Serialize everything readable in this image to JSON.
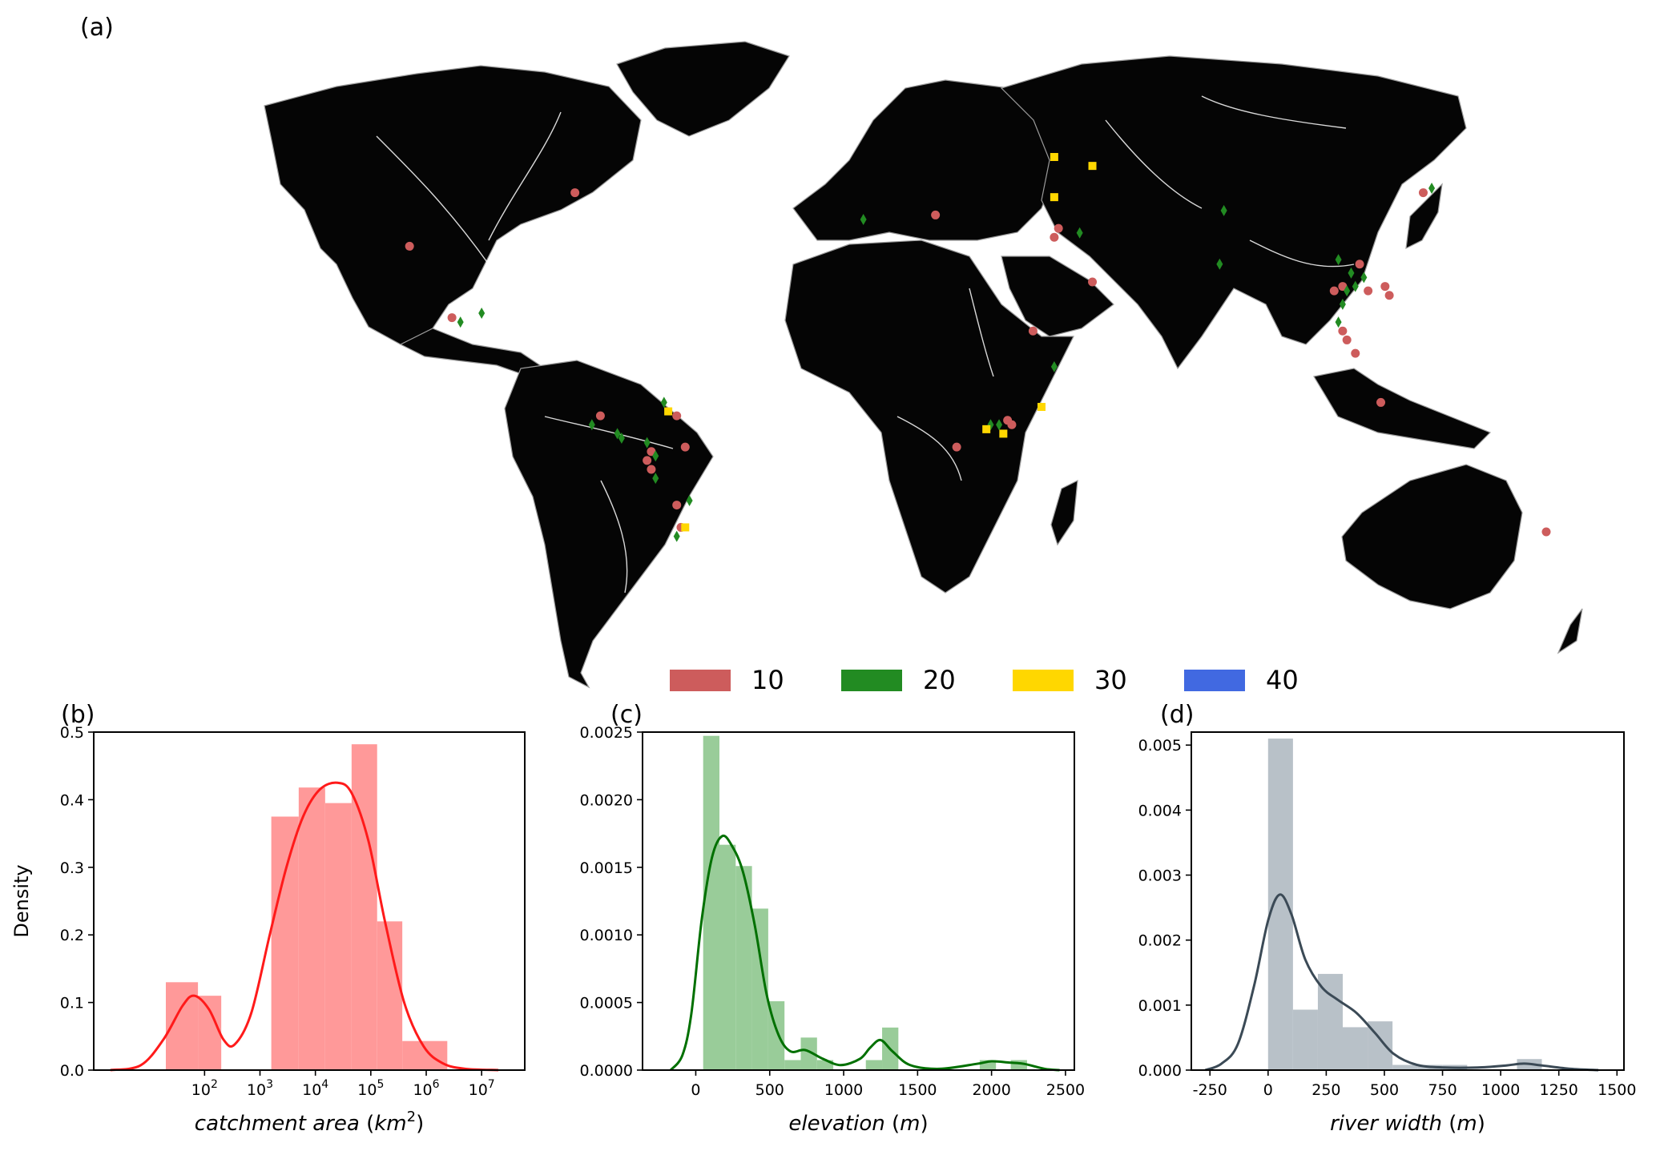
{
  "panels": {
    "a": {
      "label": "(a)"
    },
    "b": {
      "label": "(b)"
    },
    "c": {
      "label": "(c)"
    },
    "d": {
      "label": "(d)"
    }
  },
  "map": {
    "legend": [
      {
        "label": "10",
        "color": "#cd5c5c"
      },
      {
        "label": "20",
        "color": "#228b22"
      },
      {
        "label": "30",
        "color": "#ffd700"
      },
      {
        "label": "40",
        "color": "#4169e1"
      }
    ],
    "sites": [
      {
        "lon": -115,
        "lat": 36,
        "cat": "10"
      },
      {
        "lon": -76,
        "lat": 48,
        "cat": "10"
      },
      {
        "lon": -105,
        "lat": 20,
        "cat": "10"
      },
      {
        "lon": -103,
        "lat": 19,
        "cat": "20"
      },
      {
        "lon": -98,
        "lat": 21,
        "cat": "20"
      },
      {
        "lon": -72,
        "lat": -4,
        "cat": "20"
      },
      {
        "lon": -70,
        "lat": -2,
        "cat": "10"
      },
      {
        "lon": -66,
        "lat": -6,
        "cat": "20"
      },
      {
        "lon": -65,
        "lat": -7,
        "cat": "20"
      },
      {
        "lon": -52,
        "lat": -2,
        "cat": "10"
      },
      {
        "lon": -54,
        "lat": -1,
        "cat": "30"
      },
      {
        "lon": -55,
        "lat": 1,
        "cat": "20"
      },
      {
        "lon": -58,
        "lat": -10,
        "cat": "10"
      },
      {
        "lon": -59,
        "lat": -8,
        "cat": "20"
      },
      {
        "lon": -57,
        "lat": -11,
        "cat": "20"
      },
      {
        "lon": -59,
        "lat": -12,
        "cat": "10"
      },
      {
        "lon": -58,
        "lat": -14,
        "cat": "10"
      },
      {
        "lon": -57,
        "lat": -16,
        "cat": "20"
      },
      {
        "lon": -50,
        "lat": -9,
        "cat": "10"
      },
      {
        "lon": -52,
        "lat": -22,
        "cat": "10"
      },
      {
        "lon": -49,
        "lat": -21,
        "cat": "20"
      },
      {
        "lon": -51,
        "lat": -27,
        "cat": "10"
      },
      {
        "lon": -50,
        "lat": -27,
        "cat": "30"
      },
      {
        "lon": -52,
        "lat": -29,
        "cat": "20"
      },
      {
        "lon": -8,
        "lat": 42,
        "cat": "20"
      },
      {
        "lon": 9,
        "lat": 43,
        "cat": "10"
      },
      {
        "lon": 37,
        "lat": 56,
        "cat": "30"
      },
      {
        "lon": 46,
        "lat": 54,
        "cat": "30"
      },
      {
        "lon": 37,
        "lat": 47,
        "cat": "30"
      },
      {
        "lon": 38,
        "lat": 40,
        "cat": "10"
      },
      {
        "lon": 37,
        "lat": 38,
        "cat": "10"
      },
      {
        "lon": 43,
        "lat": 39,
        "cat": "20"
      },
      {
        "lon": 46,
        "lat": 28,
        "cat": "10"
      },
      {
        "lon": 32,
        "lat": 17,
        "cat": "10"
      },
      {
        "lon": 37,
        "lat": 9,
        "cat": "20"
      },
      {
        "lon": 34,
        "lat": 0,
        "cat": "30"
      },
      {
        "lon": 22,
        "lat": -4,
        "cat": "20"
      },
      {
        "lon": 24,
        "lat": -4,
        "cat": "20"
      },
      {
        "lon": 21,
        "lat": -5,
        "cat": "30"
      },
      {
        "lon": 25,
        "lat": -6,
        "cat": "30"
      },
      {
        "lon": 26,
        "lat": -3,
        "cat": "10"
      },
      {
        "lon": 27,
        "lat": -4,
        "cat": "10"
      },
      {
        "lon": 14,
        "lat": -9,
        "cat": "10"
      },
      {
        "lon": 77,
        "lat": 44,
        "cat": "20"
      },
      {
        "lon": 76,
        "lat": 32,
        "cat": "20"
      },
      {
        "lon": 104,
        "lat": 33,
        "cat": "20"
      },
      {
        "lon": 109,
        "lat": 32,
        "cat": "10"
      },
      {
        "lon": 107,
        "lat": 30,
        "cat": "20"
      },
      {
        "lon": 110,
        "lat": 29,
        "cat": "20"
      },
      {
        "lon": 105,
        "lat": 27,
        "cat": "10"
      },
      {
        "lon": 103,
        "lat": 26,
        "cat": "10"
      },
      {
        "lon": 106,
        "lat": 26,
        "cat": "20"
      },
      {
        "lon": 108,
        "lat": 27,
        "cat": "20"
      },
      {
        "lon": 111,
        "lat": 26,
        "cat": "10"
      },
      {
        "lon": 105,
        "lat": 23,
        "cat": "20"
      },
      {
        "lon": 115,
        "lat": 27,
        "cat": "10"
      },
      {
        "lon": 116,
        "lat": 25,
        "cat": "10"
      },
      {
        "lon": 104,
        "lat": 19,
        "cat": "20"
      },
      {
        "lon": 105,
        "lat": 17,
        "cat": "10"
      },
      {
        "lon": 106,
        "lat": 15,
        "cat": "10"
      },
      {
        "lon": 108,
        "lat": 12,
        "cat": "10"
      },
      {
        "lon": 114,
        "lat": 1,
        "cat": "10"
      },
      {
        "lon": 124,
        "lat": 48,
        "cat": "10"
      },
      {
        "lon": 126,
        "lat": 49,
        "cat": "20"
      },
      {
        "lon": 153,
        "lat": -28,
        "cat": "10"
      }
    ]
  },
  "chart_data": [
    {
      "panel": "b",
      "type": "bar",
      "subtype": "histogram_with_kde",
      "xscale": "log",
      "xlabel": "catchment area (km²)",
      "xlabel_text": "catchment area",
      "xlabel_unit_base": "km",
      "xlabel_unit_exp": "2",
      "ylabel": "Density",
      "xlim": [
        1,
        60000000
      ],
      "ylim": [
        0,
        0.5
      ],
      "x_ticks": [
        {
          "value": 100,
          "base": "10",
          "exp": "2"
        },
        {
          "value": 1000,
          "base": "10",
          "exp": "3"
        },
        {
          "value": 10000,
          "base": "10",
          "exp": "4"
        },
        {
          "value": 100000,
          "base": "10",
          "exp": "5"
        },
        {
          "value": 1000000,
          "base": "10",
          "exp": "6"
        },
        {
          "value": 10000000,
          "base": "10",
          "exp": "7"
        }
      ],
      "y_ticks": [
        "0.0",
        "0.1",
        "0.2",
        "0.3",
        "0.4",
        "0.5"
      ],
      "color": "#ff9999",
      "kde_color": "#ff1a1a",
      "bins": [
        {
          "x0": 20,
          "x1": 76,
          "density": 0.13
        },
        {
          "x0": 76,
          "x1": 200,
          "density": 0.11
        },
        {
          "x0": 1600,
          "x1": 5000,
          "density": 0.375
        },
        {
          "x0": 5000,
          "x1": 15000,
          "density": 0.418
        },
        {
          "x0": 15000,
          "x1": 45000,
          "density": 0.395
        },
        {
          "x0": 45000,
          "x1": 130000,
          "density": 0.482
        },
        {
          "x0": 130000,
          "x1": 370000,
          "density": 0.22
        },
        {
          "x0": 370000,
          "x1": 2400000,
          "density": 0.043
        }
      ],
      "kde": [
        {
          "x": 2,
          "y": 0.0
        },
        {
          "x": 7,
          "y": 0.007
        },
        {
          "x": 18,
          "y": 0.045
        },
        {
          "x": 40,
          "y": 0.095
        },
        {
          "x": 65,
          "y": 0.11
        },
        {
          "x": 120,
          "y": 0.09
        },
        {
          "x": 220,
          "y": 0.045
        },
        {
          "x": 350,
          "y": 0.038
        },
        {
          "x": 700,
          "y": 0.085
        },
        {
          "x": 1500,
          "y": 0.2
        },
        {
          "x": 3000,
          "y": 0.3
        },
        {
          "x": 6000,
          "y": 0.375
        },
        {
          "x": 12000,
          "y": 0.415
        },
        {
          "x": 25000,
          "y": 0.425
        },
        {
          "x": 45000,
          "y": 0.41
        },
        {
          "x": 90000,
          "y": 0.34
        },
        {
          "x": 180000,
          "y": 0.22
        },
        {
          "x": 400000,
          "y": 0.1
        },
        {
          "x": 900000,
          "y": 0.035
        },
        {
          "x": 2000000,
          "y": 0.01
        },
        {
          "x": 5000000,
          "y": 0.002
        },
        {
          "x": 20000000,
          "y": 0.0
        }
      ]
    },
    {
      "panel": "c",
      "type": "bar",
      "subtype": "histogram_with_kde",
      "xlabel": "elevation (m)",
      "xlabel_text": "elevation",
      "xlabel_unit": "m",
      "ylabel": "",
      "xlim": [
        -360,
        2560
      ],
      "ylim": [
        0,
        0.0027
      ],
      "x_ticks": [
        0,
        500,
        1000,
        1500,
        2000,
        2500
      ],
      "y_ticks": [
        "0.0000",
        "0.0005",
        "0.0010",
        "0.0015",
        "0.0020",
        "0.0025"
      ],
      "color": "#99cc99",
      "kde_color": "#007000",
      "bins": [
        {
          "x0": 50,
          "x1": 160,
          "density": 0.00267
        },
        {
          "x0": 160,
          "x1": 270,
          "density": 0.0018
        },
        {
          "x0": 270,
          "x1": 380,
          "density": 0.00163
        },
        {
          "x0": 380,
          "x1": 490,
          "density": 0.00129
        },
        {
          "x0": 490,
          "x1": 600,
          "density": 0.00055
        },
        {
          "x0": 600,
          "x1": 710,
          "density": 8e-05
        },
        {
          "x0": 710,
          "x1": 820,
          "density": 0.00026
        },
        {
          "x0": 820,
          "x1": 930,
          "density": 8e-05
        },
        {
          "x0": 1150,
          "x1": 1260,
          "density": 8e-05
        },
        {
          "x0": 1260,
          "x1": 1370,
          "density": 0.00034
        },
        {
          "x0": 1920,
          "x1": 2030,
          "density": 8e-05
        },
        {
          "x0": 2130,
          "x1": 2240,
          "density": 8e-05
        }
      ],
      "kde": [
        {
          "x": -170,
          "y": 0.0
        },
        {
          "x": -90,
          "y": 0.00012
        },
        {
          "x": -30,
          "y": 0.00045
        },
        {
          "x": 40,
          "y": 0.0012
        },
        {
          "x": 110,
          "y": 0.0017
        },
        {
          "x": 180,
          "y": 0.00187
        },
        {
          "x": 250,
          "y": 0.00178
        },
        {
          "x": 320,
          "y": 0.00158
        },
        {
          "x": 400,
          "y": 0.00115
        },
        {
          "x": 480,
          "y": 0.0006
        },
        {
          "x": 560,
          "y": 0.00028
        },
        {
          "x": 640,
          "y": 0.00015
        },
        {
          "x": 740,
          "y": 0.00016
        },
        {
          "x": 860,
          "y": 9e-05
        },
        {
          "x": 980,
          "y": 4e-05
        },
        {
          "x": 1110,
          "y": 9e-05
        },
        {
          "x": 1180,
          "y": 0.00018
        },
        {
          "x": 1250,
          "y": 0.00024
        },
        {
          "x": 1330,
          "y": 0.00015
        },
        {
          "x": 1450,
          "y": 4e-05
        },
        {
          "x": 1650,
          "y": 1e-05
        },
        {
          "x": 1900,
          "y": 5e-05
        },
        {
          "x": 2000,
          "y": 7e-05
        },
        {
          "x": 2120,
          "y": 6e-05
        },
        {
          "x": 2220,
          "y": 5e-05
        },
        {
          "x": 2360,
          "y": 1e-05
        },
        {
          "x": 2460,
          "y": 0.0
        }
      ]
    },
    {
      "panel": "d",
      "type": "bar",
      "subtype": "histogram_with_kde",
      "xlabel": "river width (m)",
      "xlabel_text": "river width",
      "xlabel_unit": "m",
      "ylabel": "",
      "xlim": [
        -330,
        1530
      ],
      "ylim": [
        0,
        0.0052
      ],
      "x_ticks": [
        -250,
        0,
        250,
        500,
        750,
        1000,
        1250,
        1500
      ],
      "y_ticks": [
        "0.000",
        "0.001",
        "0.002",
        "0.003",
        "0.004",
        "0.005"
      ],
      "color": "#b8c1c8",
      "kde_color": "#3b4a56",
      "bins": [
        {
          "x0": 0,
          "x1": 107,
          "density": 0.0051
        },
        {
          "x0": 107,
          "x1": 214,
          "density": 0.00093
        },
        {
          "x0": 214,
          "x1": 321,
          "density": 0.00148
        },
        {
          "x0": 321,
          "x1": 428,
          "density": 0.00066
        },
        {
          "x0": 428,
          "x1": 535,
          "density": 0.00075
        },
        {
          "x0": 535,
          "x1": 642,
          "density": 8e-05
        },
        {
          "x0": 642,
          "x1": 749,
          "density": 8e-05
        },
        {
          "x0": 749,
          "x1": 856,
          "density": 8e-05
        },
        {
          "x0": 1070,
          "x1": 1177,
          "density": 0.00017
        }
      ],
      "kde": [
        {
          "x": -270,
          "y": 0.0
        },
        {
          "x": -200,
          "y": 0.0001
        },
        {
          "x": -130,
          "y": 0.0004
        },
        {
          "x": -60,
          "y": 0.0013
        },
        {
          "x": 0,
          "y": 0.0023
        },
        {
          "x": 50,
          "y": 0.0027
        },
        {
          "x": 100,
          "y": 0.0024
        },
        {
          "x": 160,
          "y": 0.0017
        },
        {
          "x": 230,
          "y": 0.00128
        },
        {
          "x": 300,
          "y": 0.00108
        },
        {
          "x": 380,
          "y": 0.00088
        },
        {
          "x": 460,
          "y": 0.00057
        },
        {
          "x": 540,
          "y": 0.00025
        },
        {
          "x": 640,
          "y": 8e-05
        },
        {
          "x": 760,
          "y": 4e-05
        },
        {
          "x": 900,
          "y": 4e-05
        },
        {
          "x": 1020,
          "y": 7e-05
        },
        {
          "x": 1100,
          "y": 0.0001
        },
        {
          "x": 1180,
          "y": 7e-05
        },
        {
          "x": 1300,
          "y": 2e-05
        },
        {
          "x": 1420,
          "y": 0.0
        }
      ]
    }
  ]
}
